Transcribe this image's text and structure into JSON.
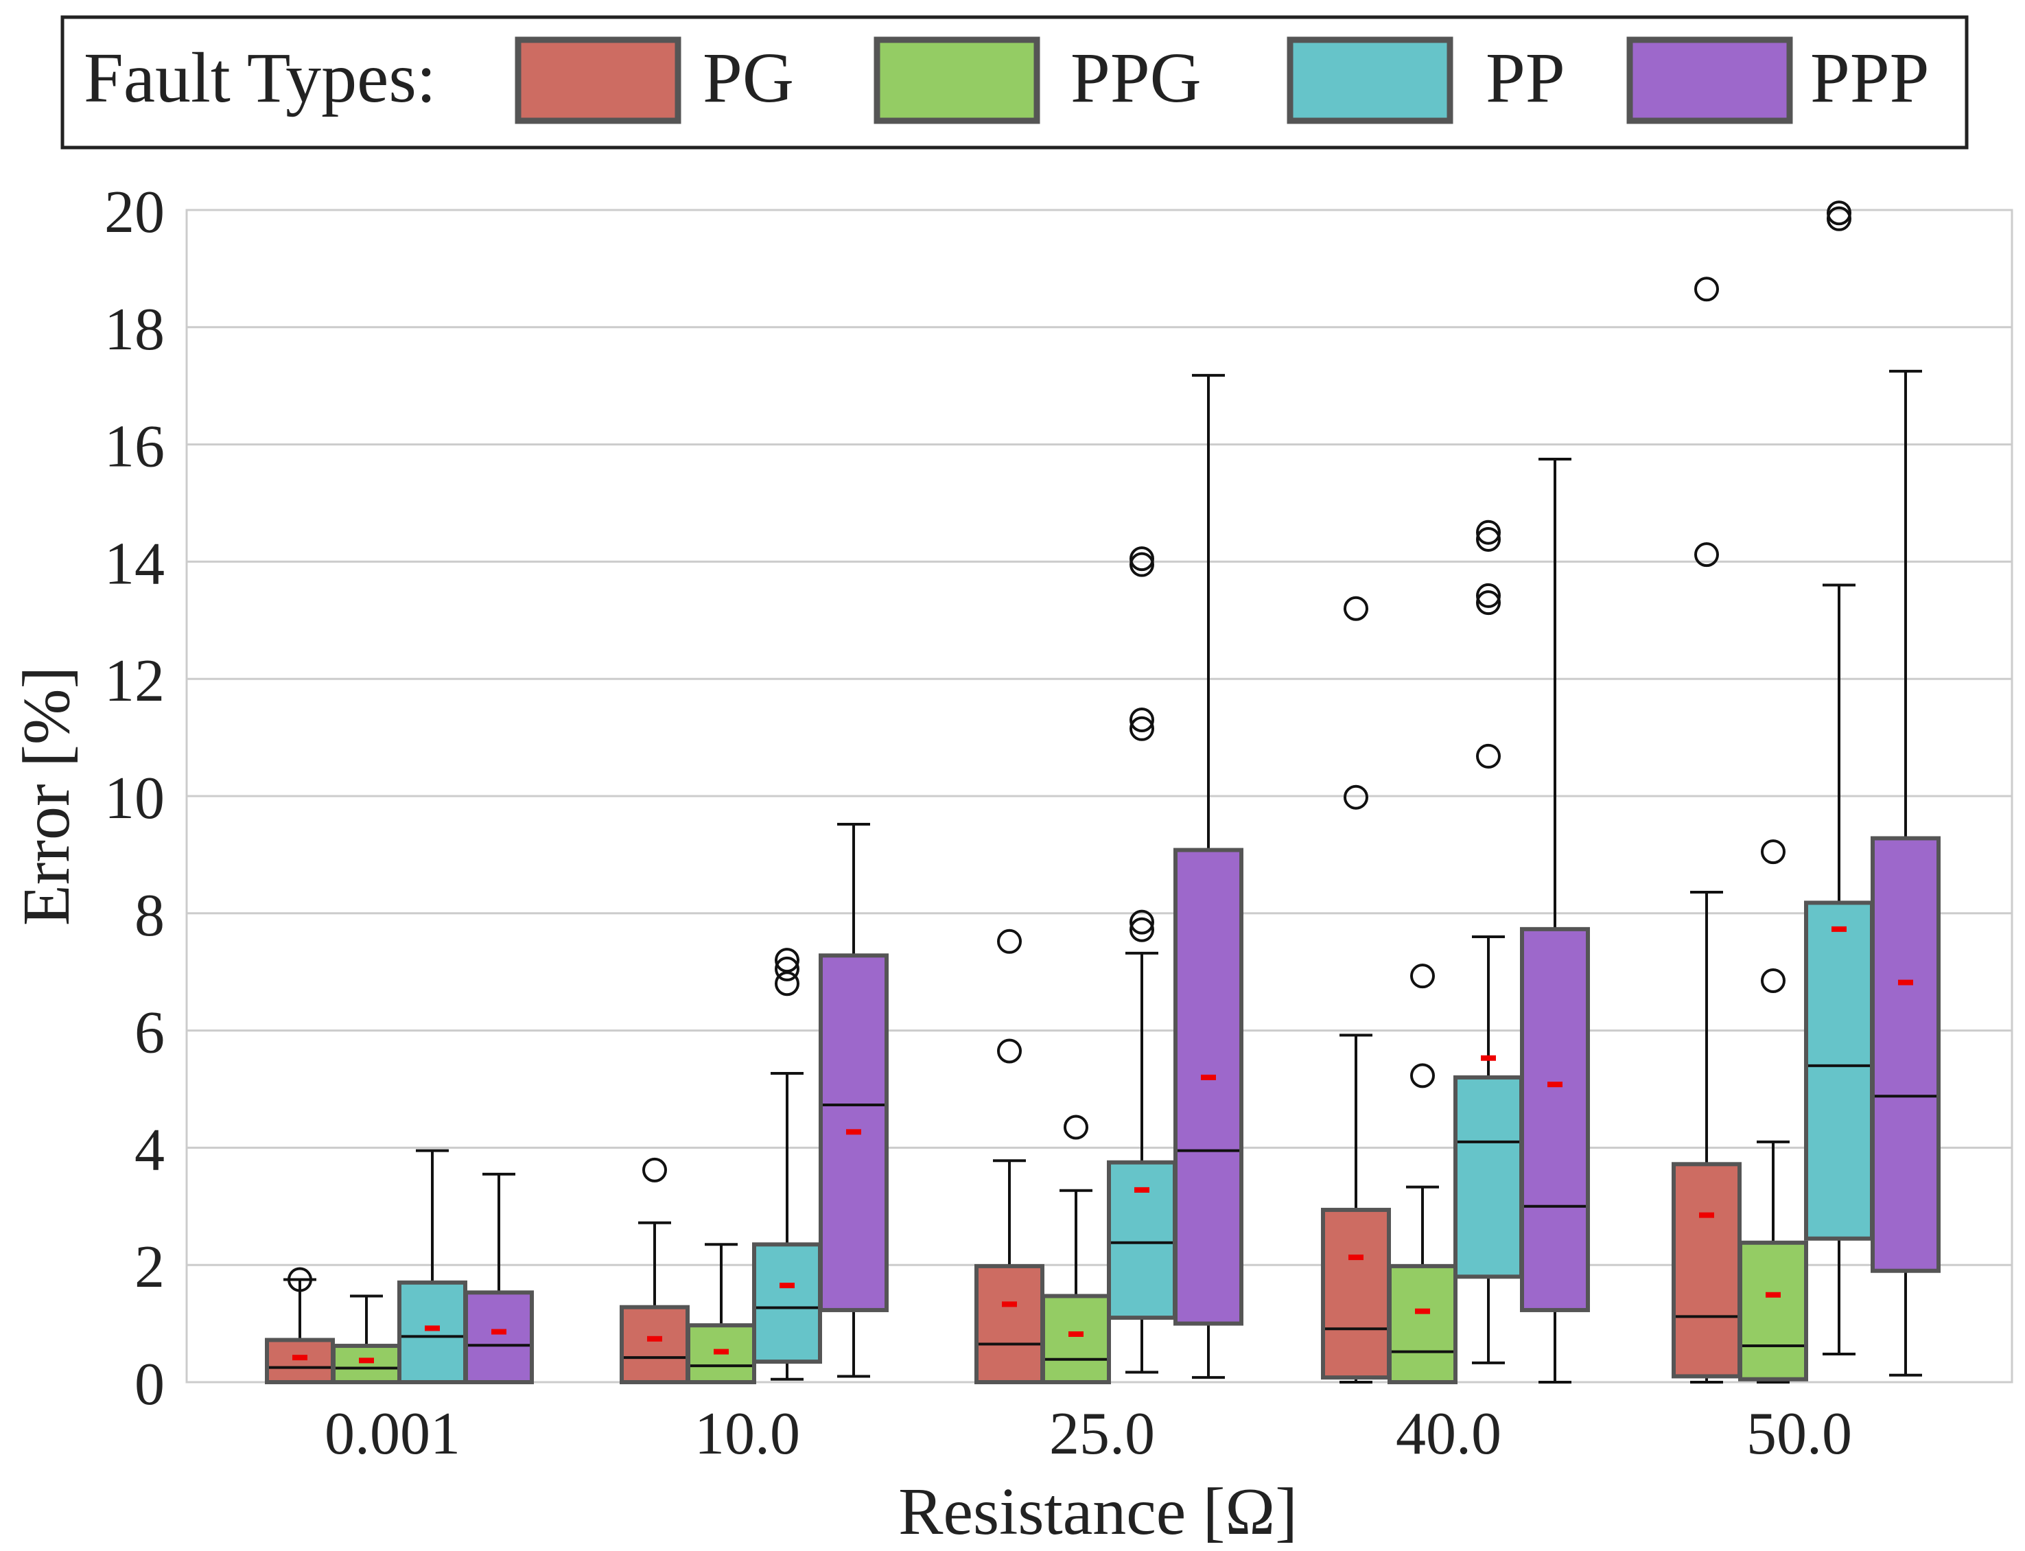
{
  "chart_data": {
    "type": "box",
    "title": "",
    "xlabel": "Resistance [Ω]",
    "ylabel": "Error [%]",
    "ylim": [
      0,
      20
    ],
    "yticks": [
      0,
      2,
      4,
      6,
      8,
      10,
      12,
      14,
      16,
      18,
      20
    ],
    "ytick_labels": [
      "0",
      "2",
      "4",
      "6",
      "8",
      "10",
      "12",
      "14",
      "16",
      "18",
      "20"
    ],
    "grid": true,
    "categories": [
      "0.001",
      "10.0",
      "25.0",
      "40.0",
      "50.0"
    ],
    "legend": {
      "position": "top",
      "title": "Fault Types:",
      "entries": [
        "PG",
        "PPG",
        "PP",
        "PPP"
      ]
    },
    "series": [
      {
        "name": "PG",
        "color": "#cd6c62",
        "boxes": [
          {
            "whislo": 0.0,
            "q1": 0.0,
            "med": 0.25,
            "q3": 0.72,
            "whishi": 1.75,
            "mean": 0.42,
            "fliers": [
              1.75
            ]
          },
          {
            "whislo": 0.0,
            "q1": 0.0,
            "med": 0.42,
            "q3": 1.28,
            "whishi": 2.72,
            "mean": 0.74,
            "fliers": [
              3.62
            ]
          },
          {
            "whislo": 0.0,
            "q1": 0.0,
            "med": 0.65,
            "q3": 1.98,
            "whishi": 3.78,
            "mean": 1.33,
            "fliers": [
              5.65,
              7.52
            ]
          },
          {
            "whislo": 0.0,
            "q1": 0.08,
            "med": 0.91,
            "q3": 2.94,
            "whishi": 5.92,
            "mean": 2.13,
            "fliers": [
              9.98,
              13.2
            ]
          },
          {
            "whislo": 0.0,
            "q1": 0.1,
            "med": 1.12,
            "q3": 3.72,
            "whishi": 8.36,
            "mean": 2.85,
            "fliers": [
              14.12,
              18.65
            ]
          }
        ]
      },
      {
        "name": "PPG",
        "color": "#94cc64",
        "boxes": [
          {
            "whislo": 0.0,
            "q1": 0.0,
            "med": 0.24,
            "q3": 0.62,
            "whishi": 1.47,
            "mean": 0.37,
            "fliers": []
          },
          {
            "whislo": 0.0,
            "q1": 0.0,
            "med": 0.28,
            "q3": 0.97,
            "whishi": 2.35,
            "mean": 0.52,
            "fliers": []
          },
          {
            "whislo": 0.0,
            "q1": 0.0,
            "med": 0.39,
            "q3": 1.47,
            "whishi": 3.27,
            "mean": 0.82,
            "fliers": [
              4.35
            ]
          },
          {
            "whislo": 0.0,
            "q1": 0.0,
            "med": 0.52,
            "q3": 1.98,
            "whishi": 3.33,
            "mean": 1.21,
            "fliers": [
              5.23,
              6.93
            ]
          },
          {
            "whislo": 0.0,
            "q1": 0.05,
            "med": 0.62,
            "q3": 2.38,
            "whishi": 4.1,
            "mean": 1.49,
            "fliers": [
              6.85,
              9.05
            ]
          }
        ]
      },
      {
        "name": "PP",
        "color": "#66c4c9",
        "boxes": [
          {
            "whislo": 0.0,
            "q1": 0.0,
            "med": 0.78,
            "q3": 1.7,
            "whishi": 3.95,
            "mean": 0.92,
            "fliers": []
          },
          {
            "whislo": 0.05,
            "q1": 0.35,
            "med": 1.27,
            "q3": 2.35,
            "whishi": 5.27,
            "mean": 1.65,
            "fliers": [
              6.8,
              7.05,
              7.2
            ]
          },
          {
            "whislo": 0.17,
            "q1": 1.1,
            "med": 2.38,
            "q3": 3.75,
            "whishi": 7.32,
            "mean": 3.28,
            "fliers": [
              7.72,
              7.85,
              11.15,
              11.3,
              13.95,
              14.05
            ]
          },
          {
            "whislo": 0.33,
            "q1": 1.8,
            "med": 4.1,
            "q3": 5.2,
            "whishi": 7.6,
            "mean": 5.53,
            "fliers": [
              10.68,
              13.3,
              13.42,
              14.38,
              14.5
            ]
          },
          {
            "whislo": 0.48,
            "q1": 2.45,
            "med": 5.4,
            "q3": 8.18,
            "whishi": 13.6,
            "mean": 7.73,
            "fliers": [
              19.85,
              19.95
            ]
          }
        ]
      },
      {
        "name": "PPP",
        "color": "#9d68cb",
        "boxes": [
          {
            "whislo": 0.0,
            "q1": 0.0,
            "med": 0.63,
            "q3": 1.53,
            "whishi": 3.55,
            "mean": 0.86,
            "fliers": []
          },
          {
            "whislo": 0.1,
            "q1": 1.23,
            "med": 4.73,
            "q3": 7.28,
            "whishi": 9.52,
            "mean": 4.27,
            "fliers": []
          },
          {
            "whislo": 0.08,
            "q1": 1.0,
            "med": 3.95,
            "q3": 9.08,
            "whishi": 17.18,
            "mean": 5.2,
            "fliers": []
          },
          {
            "whislo": 0.0,
            "q1": 1.23,
            "med": 3.0,
            "q3": 7.73,
            "whishi": 15.75,
            "mean": 5.08,
            "fliers": []
          },
          {
            "whislo": 0.12,
            "q1": 1.9,
            "med": 4.88,
            "q3": 9.28,
            "whishi": 17.25,
            "mean": 6.82,
            "fliers": []
          }
        ]
      }
    ]
  }
}
